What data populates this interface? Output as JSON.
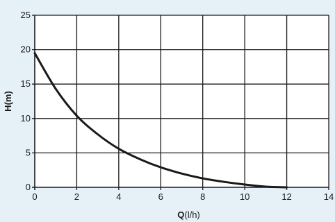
{
  "chart_data": {
    "type": "line",
    "title": "",
    "xlabel_main": "Q",
    "xlabel_unit": "(l/h)",
    "ylabel": "H(m)",
    "xlim": [
      0,
      14
    ],
    "ylim": [
      0,
      25
    ],
    "x_ticks": [
      "0",
      "2",
      "4",
      "6",
      "8",
      "10",
      "12",
      "14"
    ],
    "y_ticks": [
      "0",
      "5",
      "10",
      "15",
      "20",
      "25"
    ],
    "grid": true,
    "legend": "none",
    "series": [
      {
        "x": [
          0,
          1,
          2,
          3,
          4,
          5,
          6,
          7,
          8,
          9,
          10,
          11,
          12
        ],
        "y": [
          19.5,
          14.3,
          10.4,
          7.7,
          5.6,
          4.1,
          2.9,
          2.0,
          1.3,
          0.8,
          0.4,
          0.1,
          0
        ]
      }
    ]
  },
  "colors": {
    "background": "#e6f0f7",
    "plot_area": "#ffffff",
    "grid": "#1a1a1a",
    "curve": "#1a1a1a"
  }
}
